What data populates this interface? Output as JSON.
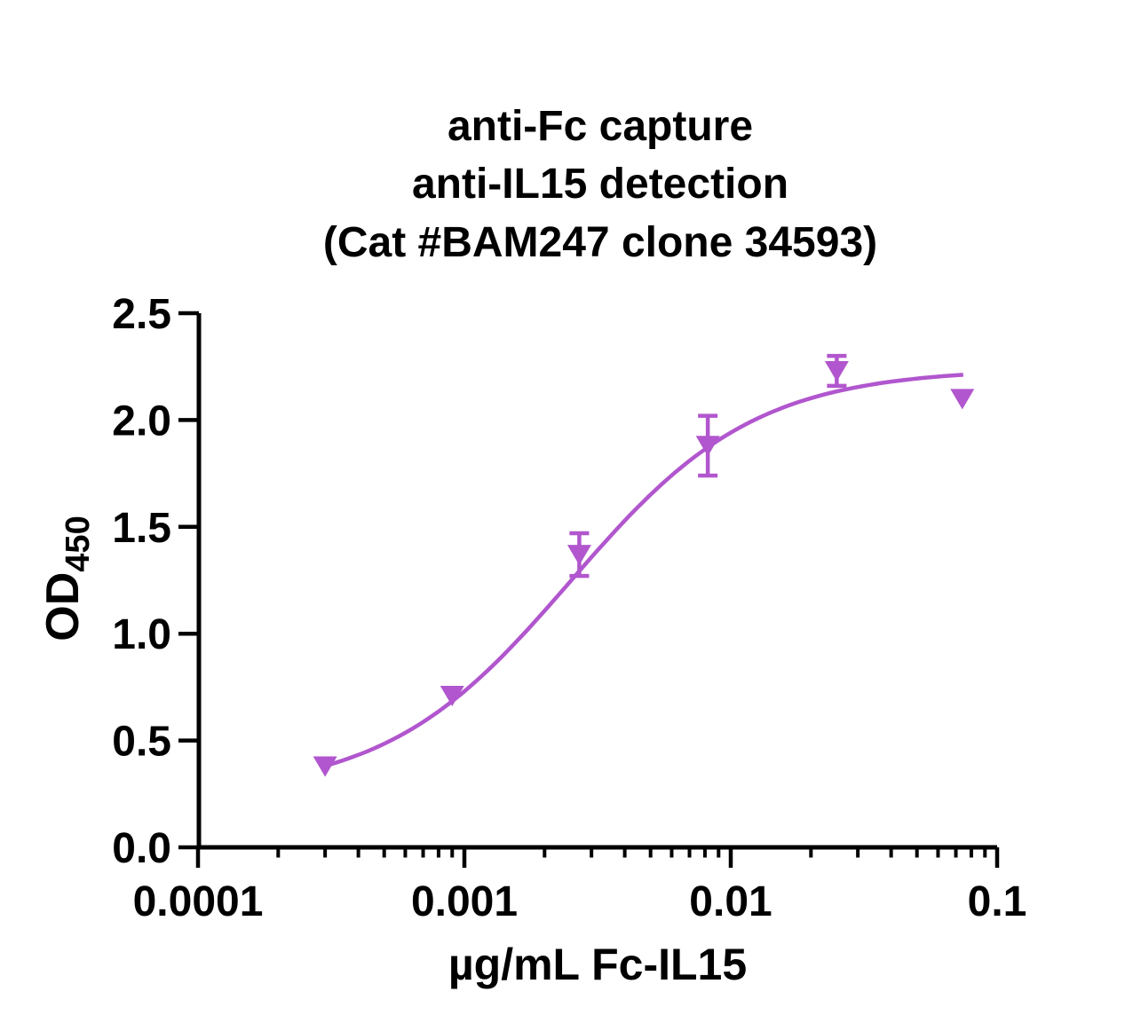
{
  "title": {
    "lines": [
      "anti-Fc capture",
      "anti-IL15 detection",
      "(Cat #BAM247 clone 34593)"
    ]
  },
  "chart_data": {
    "type": "scatter",
    "title": "anti-Fc capture anti-IL15 detection (Cat #BAM247 clone 34593)",
    "xlabel": "µg/mL Fc-IL15",
    "ylabel_text": "OD",
    "ylabel_subscript": "450",
    "x_scale": "log",
    "grid": false,
    "legend": "none",
    "xlim": [
      0.0001,
      0.1
    ],
    "ylim": [
      0.0,
      2.5
    ],
    "x_ticks": [
      0.0001,
      0.001,
      0.01,
      0.1
    ],
    "x_tick_labels": [
      "0.0001",
      "0.001",
      "0.01",
      "0.1"
    ],
    "x_minor_decades": [
      0.0001,
      0.001,
      0.01
    ],
    "x_minor_multipliers": [
      2,
      3,
      4,
      5,
      6,
      7,
      8,
      9
    ],
    "y_ticks": [
      0.0,
      0.5,
      1.0,
      1.5,
      2.0,
      2.5
    ],
    "y_tick_labels": [
      "0.0",
      "0.5",
      "1.0",
      "1.5",
      "2.0",
      "2.5"
    ],
    "series": [
      {
        "name": "Fc-IL15",
        "marker": "triangle-down",
        "color": "#B156CE",
        "points": [
          {
            "x": 0.0003,
            "y": 0.38,
            "err": 0
          },
          {
            "x": 0.0009,
            "y": 0.71,
            "err": 0
          },
          {
            "x": 0.0027,
            "y": 1.37,
            "err": 0.1
          },
          {
            "x": 0.0082,
            "y": 1.88,
            "err": 0.14
          },
          {
            "x": 0.025,
            "y": 2.23,
            "err": 0.07
          },
          {
            "x": 0.074,
            "y": 2.1,
            "err": 0
          }
        ]
      }
    ],
    "curve_fit": {
      "model": "4PL",
      "bottom": 0.25,
      "top": 2.24,
      "ec50": 0.0025,
      "hill": 1.25
    }
  }
}
